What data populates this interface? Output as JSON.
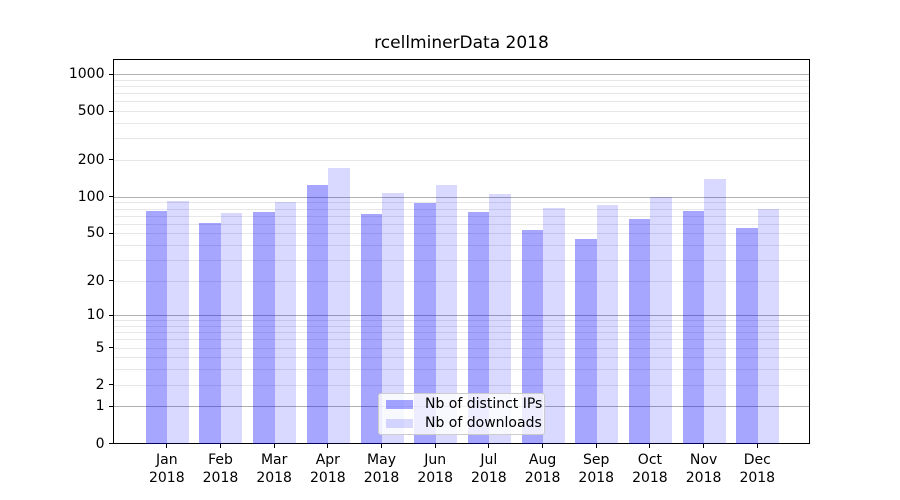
{
  "chart_data": {
    "type": "bar",
    "title": "rcellminerData 2018",
    "categories": [
      "Jan",
      "Feb",
      "Mar",
      "Apr",
      "May",
      "Jun",
      "Jul",
      "Aug",
      "Sep",
      "Oct",
      "Nov",
      "Dec"
    ],
    "year_label": "2018",
    "series": [
      {
        "name": "Nb of distinct IPs",
        "color": "#0000ff",
        "alpha": 0.35,
        "values": [
          77,
          62,
          76,
          127,
          73,
          89,
          75,
          54,
          45,
          66,
          77,
          56
        ]
      },
      {
        "name": "Nb of downloads",
        "color": "#0000ff",
        "alpha": 0.15,
        "values": [
          93,
          74,
          91,
          172,
          109,
          127,
          107,
          81,
          86,
          100,
          140,
          80
        ]
      }
    ],
    "y_ticks": [
      0,
      1,
      2,
      5,
      10,
      20,
      50,
      100,
      200,
      500,
      1000
    ],
    "scale": "log1p",
    "ylim": [
      0,
      1300
    ],
    "grid": true,
    "legend_position": "lower center"
  },
  "colors": {
    "bar_distinct_ips": "#a6a6ff",
    "bar_downloads": "#d9d9ff",
    "grid_major": "#b0b0b0",
    "grid_minor": "#e7e7e7",
    "axis": "#000000",
    "legend_border": "#cccccc"
  }
}
